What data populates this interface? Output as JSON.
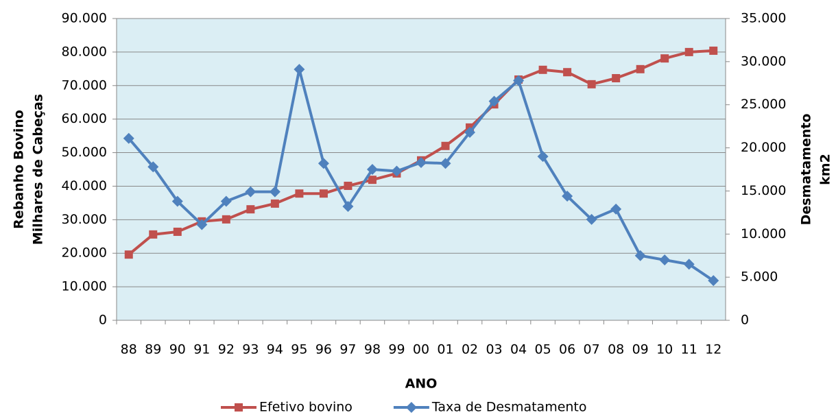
{
  "chart_data": {
    "type": "line",
    "xlabel": "ANO",
    "ylabel": [
      "Rebanho Bovino",
      "Milhares de Cabeças"
    ],
    "y2label": [
      "Desmatamento",
      "km2"
    ],
    "categories": [
      "88",
      "89",
      "90",
      "91",
      "92",
      "93",
      "94",
      "95",
      "96",
      "97",
      "98",
      "99",
      "00",
      "01",
      "02",
      "03",
      "04",
      "05",
      "06",
      "07",
      "08",
      "09",
      "10",
      "11",
      "12"
    ],
    "series": [
      {
        "name": "Efetivo bovino",
        "color": "#c0504d",
        "marker": "square",
        "values": [
          19600,
          25600,
          26400,
          29500,
          30100,
          33100,
          34800,
          37800,
          37800,
          40100,
          41900,
          43800,
          47700,
          52000,
          57500,
          64400,
          71800,
          74700,
          74000,
          70400,
          72200,
          74900,
          78100,
          80000,
          80400
        ]
      },
      {
        "name": "Taxa de Desmatamento",
        "color": "#4f81bd",
        "marker": "diamond",
        "axis": "y2",
        "values": [
          21100,
          17800,
          13800,
          11100,
          13800,
          14900,
          14900,
          29100,
          18200,
          13200,
          17500,
          17300,
          18300,
          18200,
          21800,
          25400,
          27800,
          19000,
          14400,
          11700,
          12900,
          7500,
          7000,
          6500,
          4600
        ]
      }
    ],
    "ylim": [
      0,
      90000
    ],
    "yticks": [
      0,
      {
        "value": 10000,
        "label": "10.000"
      },
      {
        "value": 20000,
        "label": "20.000"
      },
      {
        "value": 30000,
        "label": "30.000"
      },
      {
        "value": 40000,
        "label": "40.000"
      },
      {
        "value": 50000,
        "label": "50.000"
      },
      {
        "value": 60000,
        "label": "60.000"
      },
      {
        "value": 70000,
        "label": "70.000"
      },
      {
        "value": 80000,
        "label": "80.000"
      },
      {
        "value": 90000,
        "label": "90.000"
      }
    ],
    "y2lim": [
      0,
      35000
    ],
    "y2ticks": [
      0,
      {
        "value": 5000,
        "label": "5.000"
      },
      {
        "value": 10000,
        "label": "10.000"
      },
      {
        "value": 15000,
        "label": "15.000"
      },
      {
        "value": 20000,
        "label": "20.000"
      },
      {
        "value": 25000,
        "label": "25.000"
      },
      {
        "value": 30000,
        "label": "30.000"
      },
      {
        "value": 35000,
        "label": "35.000"
      }
    ],
    "grid": true,
    "plot_background": "#dbeef4",
    "legend": "bottom"
  }
}
